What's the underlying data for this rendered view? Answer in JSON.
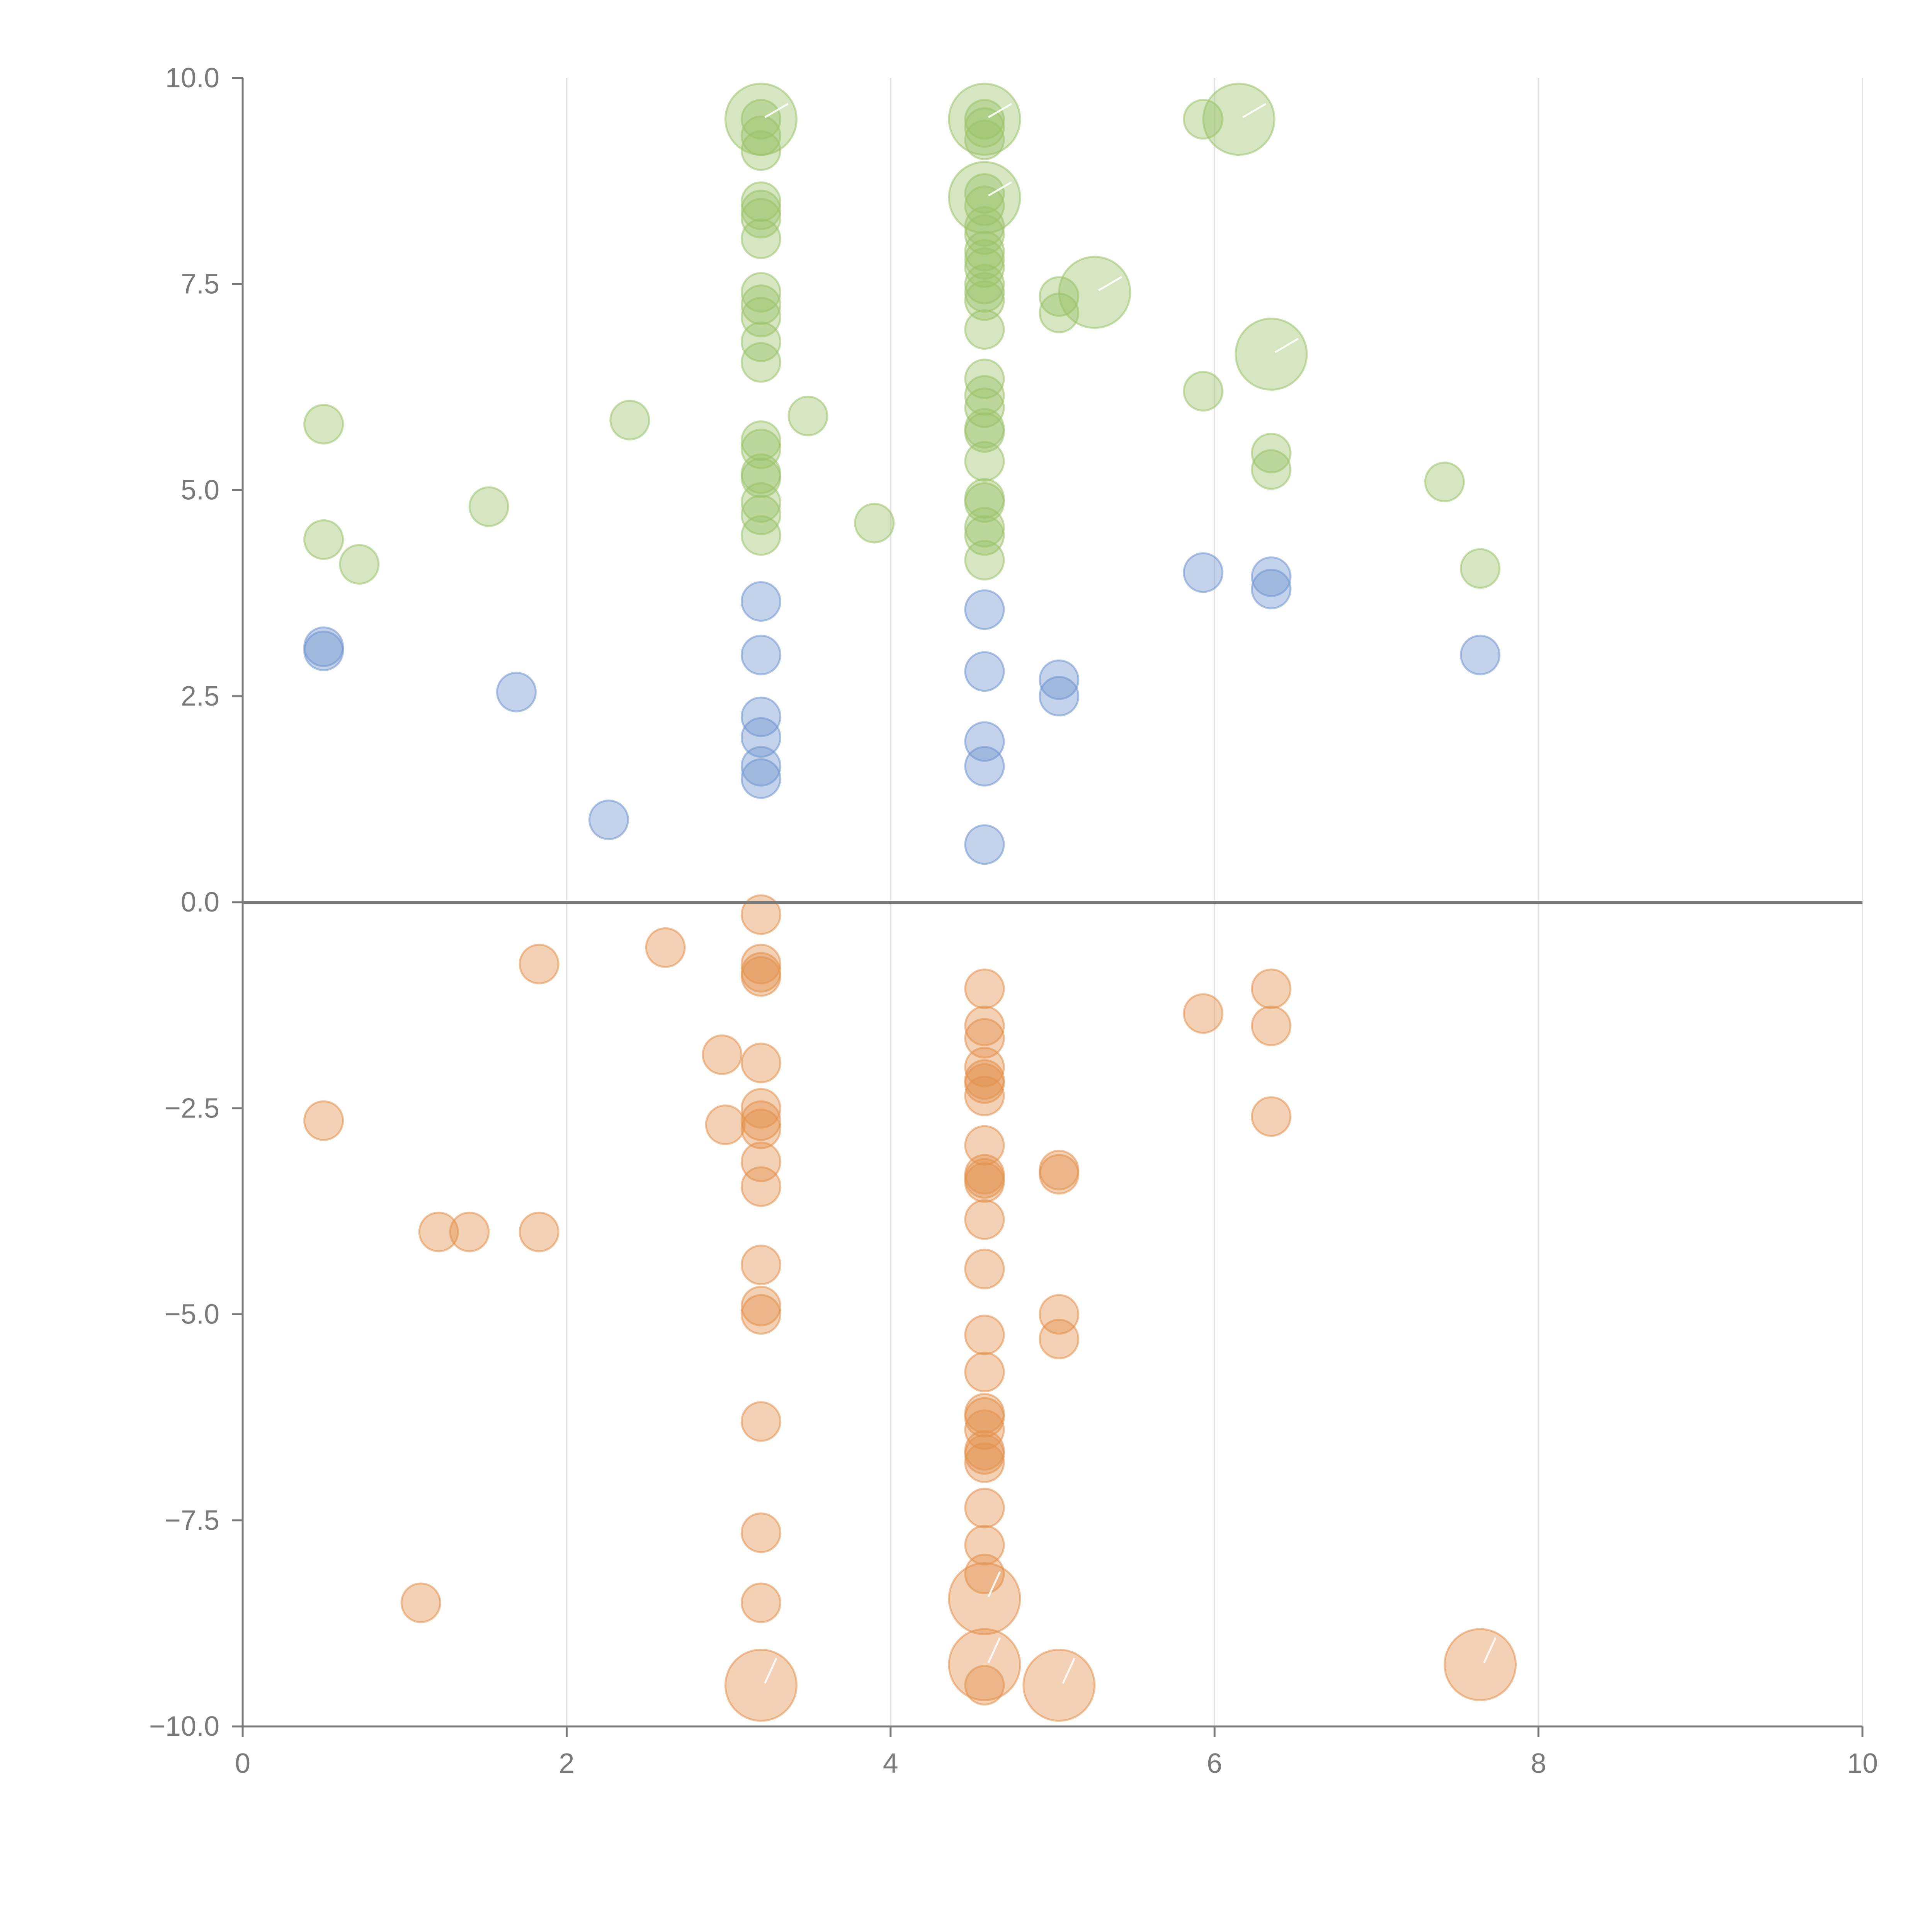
{
  "chart_data": {
    "type": "scatter",
    "title": "",
    "xlabel": "",
    "ylabel": "",
    "xlim": [
      0,
      10
    ],
    "ylim": [
      -10,
      10
    ],
    "x_ticks": [
      0,
      2,
      4,
      6,
      8,
      10
    ],
    "x_tick_labels": [
      "0",
      "2",
      "4",
      "6",
      "8",
      "10"
    ],
    "y_ticks": [
      -10,
      -7.5,
      -5,
      -2.5,
      0,
      2.5,
      5,
      7.5,
      10
    ],
    "y_tick_labels": [
      "−10.0",
      "−7.5",
      "−5.0",
      "−2.5",
      "0.0",
      "2.5",
      "5.0",
      "7.5",
      "10.0"
    ],
    "grid": "vertical",
    "zero_line": 0,
    "colors": {
      "green": "#9bc36a",
      "blue": "#6f95cf",
      "orange": "#e3914d",
      "axis": "#7a7a7a",
      "grid": "#e2e2e2"
    },
    "series": [
      {
        "name": "green",
        "points": [
          [
            0.5,
            5.8
          ],
          [
            0.5,
            4.4
          ],
          [
            0.72,
            4.1
          ],
          [
            1.52,
            4.8
          ],
          [
            2.39,
            5.85
          ],
          [
            3.2,
            9.5
          ],
          [
            3.2,
            9.3
          ],
          [
            3.2,
            9.12
          ],
          [
            3.2,
            8.5
          ],
          [
            3.2,
            8.4
          ],
          [
            3.2,
            8.3
          ],
          [
            3.2,
            8.05
          ],
          [
            3.2,
            7.4
          ],
          [
            3.2,
            7.25
          ],
          [
            3.2,
            7.1
          ],
          [
            3.2,
            6.8
          ],
          [
            3.2,
            6.55
          ],
          [
            3.2,
            5.6
          ],
          [
            3.2,
            5.5
          ],
          [
            3.2,
            5.2
          ],
          [
            3.2,
            5.15
          ],
          [
            3.2,
            4.85
          ],
          [
            3.2,
            4.7
          ],
          [
            3.2,
            4.45
          ],
          [
            3.49,
            5.9
          ],
          [
            3.9,
            4.6
          ],
          [
            4.58,
            9.5
          ],
          [
            4.58,
            9.4
          ],
          [
            4.58,
            9.25
          ],
          [
            4.58,
            8.6
          ],
          [
            4.58,
            8.45
          ],
          [
            4.58,
            8.2
          ],
          [
            4.58,
            8.1
          ],
          [
            4.58,
            7.9
          ],
          [
            4.58,
            7.8
          ],
          [
            4.58,
            7.7
          ],
          [
            4.58,
            7.5
          ],
          [
            4.58,
            7.4
          ],
          [
            4.58,
            7.3
          ],
          [
            4.58,
            6.95
          ],
          [
            4.58,
            6.35
          ],
          [
            4.58,
            6.15
          ],
          [
            4.58,
            6.0
          ],
          [
            4.58,
            5.75
          ],
          [
            4.58,
            5.7
          ],
          [
            4.58,
            5.35
          ],
          [
            4.58,
            4.9
          ],
          [
            4.58,
            4.85
          ],
          [
            4.58,
            4.55
          ],
          [
            4.58,
            4.45
          ],
          [
            4.58,
            4.15
          ],
          [
            5.04,
            7.35
          ],
          [
            5.04,
            7.15
          ],
          [
            5.93,
            9.5
          ],
          [
            5.93,
            6.2
          ],
          [
            6.35,
            5.45
          ],
          [
            6.35,
            5.25
          ],
          [
            7.42,
            5.1
          ],
          [
            7.64,
            4.05
          ]
        ],
        "labeled": [
          [
            3.2,
            9.5
          ],
          [
            4.58,
            9.5
          ],
          [
            4.58,
            8.55
          ],
          [
            5.26,
            7.4
          ],
          [
            6.15,
            9.5
          ],
          [
            6.35,
            6.65
          ]
        ]
      },
      {
        "name": "blue",
        "points": [
          [
            0.5,
            3.1
          ],
          [
            0.5,
            3.05
          ],
          [
            1.69,
            2.55
          ],
          [
            2.26,
            1.0
          ],
          [
            3.2,
            3.65
          ],
          [
            3.2,
            3.0
          ],
          [
            3.2,
            2.25
          ],
          [
            3.2,
            2.0
          ],
          [
            3.2,
            1.65
          ],
          [
            3.2,
            1.5
          ],
          [
            4.58,
            3.55
          ],
          [
            4.58,
            2.8
          ],
          [
            4.58,
            1.95
          ],
          [
            4.58,
            1.65
          ],
          [
            4.58,
            0.7
          ],
          [
            5.04,
            2.7
          ],
          [
            5.04,
            2.5
          ],
          [
            5.93,
            4.0
          ],
          [
            6.35,
            3.95
          ],
          [
            6.35,
            3.8
          ],
          [
            7.64,
            3.0
          ]
        ],
        "labeled": []
      },
      {
        "name": "orange",
        "points": [
          [
            0.5,
            -2.65
          ],
          [
            1.1,
            -8.5
          ],
          [
            1.21,
            -4.0
          ],
          [
            1.4,
            -4.0
          ],
          [
            1.83,
            -0.75
          ],
          [
            1.83,
            -4.0
          ],
          [
            2.61,
            -0.55
          ],
          [
            2.96,
            -1.85
          ],
          [
            2.98,
            -2.7
          ],
          [
            3.2,
            -0.15
          ],
          [
            3.2,
            -0.75
          ],
          [
            3.2,
            -0.85
          ],
          [
            3.2,
            -0.9
          ],
          [
            3.2,
            -1.95
          ],
          [
            3.2,
            -2.5
          ],
          [
            3.2,
            -2.65
          ],
          [
            3.2,
            -2.75
          ],
          [
            3.2,
            -3.15
          ],
          [
            3.2,
            -3.45
          ],
          [
            3.2,
            -4.4
          ],
          [
            3.2,
            -4.9
          ],
          [
            3.2,
            -5.0
          ],
          [
            3.2,
            -6.3
          ],
          [
            3.2,
            -7.65
          ],
          [
            3.2,
            -8.5
          ],
          [
            4.58,
            -1.05
          ],
          [
            4.58,
            -1.5
          ],
          [
            4.58,
            -1.65
          ],
          [
            4.58,
            -2.0
          ],
          [
            4.58,
            -2.15
          ],
          [
            4.58,
            -2.2
          ],
          [
            4.58,
            -2.35
          ],
          [
            4.58,
            -2.95
          ],
          [
            4.58,
            -3.3
          ],
          [
            4.58,
            -3.35
          ],
          [
            4.58,
            -3.4
          ],
          [
            4.58,
            -3.85
          ],
          [
            4.58,
            -4.45
          ],
          [
            4.58,
            -5.25
          ],
          [
            4.58,
            -5.7
          ],
          [
            4.58,
            -6.2
          ],
          [
            4.58,
            -6.25
          ],
          [
            4.58,
            -6.4
          ],
          [
            4.58,
            -6.65
          ],
          [
            4.58,
            -6.7
          ],
          [
            4.58,
            -6.8
          ],
          [
            4.58,
            -7.35
          ],
          [
            4.58,
            -7.8
          ],
          [
            4.58,
            -8.15
          ],
          [
            4.58,
            -9.5
          ],
          [
            5.04,
            -3.25
          ],
          [
            5.04,
            -3.3
          ],
          [
            5.04,
            -5.0
          ],
          [
            5.04,
            -5.3
          ],
          [
            5.93,
            -1.35
          ],
          [
            6.35,
            -1.05
          ],
          [
            6.35,
            -1.5
          ],
          [
            6.35,
            -2.6
          ]
        ],
        "labeled": [
          [
            3.2,
            -9.5
          ],
          [
            4.58,
            -8.45
          ],
          [
            4.58,
            -9.25
          ],
          [
            5.04,
            -9.5
          ],
          [
            7.64,
            -9.25
          ]
        ]
      }
    ]
  }
}
